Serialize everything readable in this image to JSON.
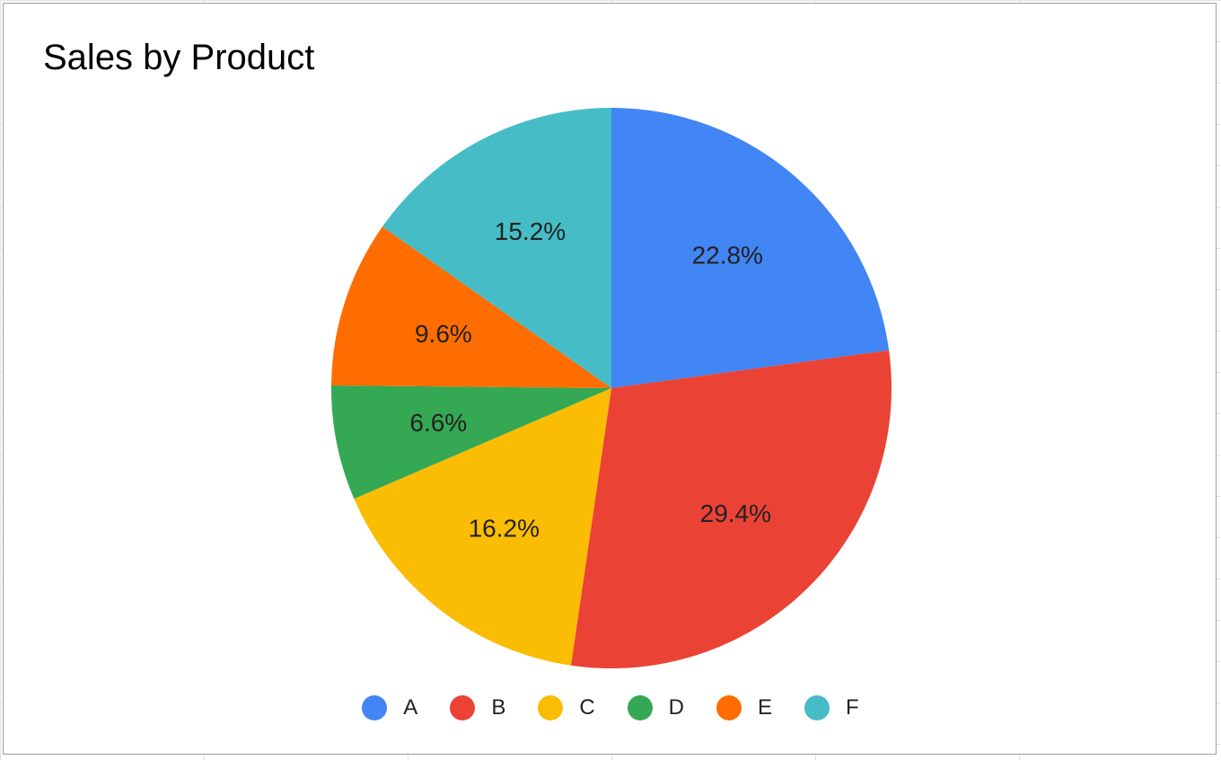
{
  "chart_data": {
    "type": "pie",
    "title": "Sales by Product",
    "legend_position": "bottom",
    "slices": [
      {
        "label": "A",
        "value": 22.8,
        "display": "22.8%",
        "color": "#4285F4"
      },
      {
        "label": "B",
        "value": 29.4,
        "display": "29.4%",
        "color": "#EA4335"
      },
      {
        "label": "C",
        "value": 16.2,
        "display": "16.2%",
        "color": "#FBBC04"
      },
      {
        "label": "D",
        "value": 6.6,
        "display": "6.6%",
        "color": "#34A853"
      },
      {
        "label": "E",
        "value": 9.6,
        "display": "9.6%",
        "color": "#FF6D01"
      },
      {
        "label": "F",
        "value": 15.2,
        "display": "15.2%",
        "color": "#46BDC6"
      }
    ]
  }
}
